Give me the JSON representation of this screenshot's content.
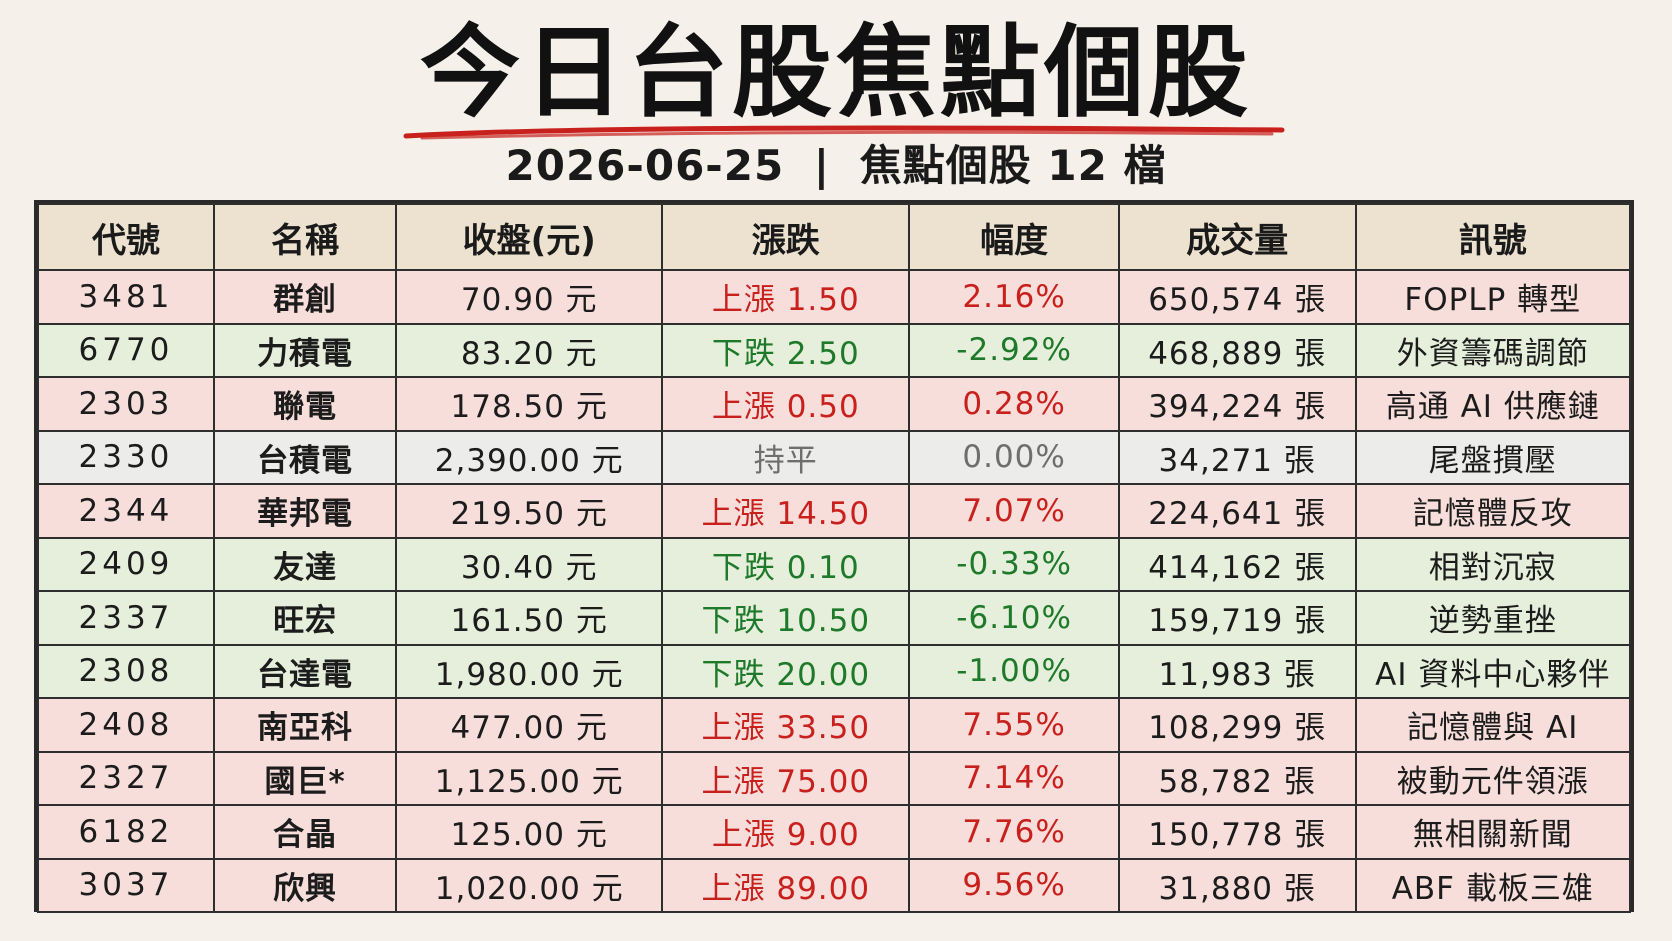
{
  "header": {
    "title": "今日台股焦點個股",
    "date": "2026-06-25",
    "separator": "|",
    "subtitle": "焦點個股 12 檔"
  },
  "colors": {
    "up_text": "#c8201d",
    "down_text": "#1e7a2a",
    "flat_text": "#6e6e6e",
    "up_row": "#f7dedb",
    "down_row": "#e6efdb",
    "flat_row": "#ececea",
    "header_row": "#ece2cf",
    "underline": "#c8201d"
  },
  "table": {
    "columns": [
      "代號",
      "名稱",
      "收盤(元)",
      "漲跌",
      "幅度",
      "成交量",
      "訊號"
    ],
    "rows": [
      {
        "trend": "up",
        "code": "3481",
        "name": "群創",
        "close": "70.90 元",
        "change": "上漲 1.50",
        "pct": "2.16%",
        "volume": "650,574 張",
        "signal": "FOPLP 轉型"
      },
      {
        "trend": "down",
        "code": "6770",
        "name": "力積電",
        "close": "83.20 元",
        "change": "下跌 2.50",
        "pct": "-2.92%",
        "volume": "468,889 張",
        "signal": "外資籌碼調節"
      },
      {
        "trend": "up",
        "code": "2303",
        "name": "聯電",
        "close": "178.50 元",
        "change": "上漲 0.50",
        "pct": "0.28%",
        "volume": "394,224 張",
        "signal": "高通 AI 供應鏈"
      },
      {
        "trend": "flat",
        "code": "2330",
        "name": "台積電",
        "close": "2,390.00 元",
        "change": "持平",
        "pct": "0.00%",
        "volume": "34,271 張",
        "signal": "尾盤摜壓"
      },
      {
        "trend": "up",
        "code": "2344",
        "name": "華邦電",
        "close": "219.50 元",
        "change": "上漲 14.50",
        "pct": "7.07%",
        "volume": "224,641 張",
        "signal": "記憶體反攻"
      },
      {
        "trend": "down",
        "code": "2409",
        "name": "友達",
        "close": "30.40 元",
        "change": "下跌 0.10",
        "pct": "-0.33%",
        "volume": "414,162 張",
        "signal": "相對沉寂"
      },
      {
        "trend": "down",
        "code": "2337",
        "name": "旺宏",
        "close": "161.50 元",
        "change": "下跌 10.50",
        "pct": "-6.10%",
        "volume": "159,719 張",
        "signal": "逆勢重挫"
      },
      {
        "trend": "down",
        "code": "2308",
        "name": "台達電",
        "close": "1,980.00 元",
        "change": "下跌 20.00",
        "pct": "-1.00%",
        "volume": "11,983 張",
        "signal": "AI 資料中心夥伴"
      },
      {
        "trend": "up",
        "code": "2408",
        "name": "南亞科",
        "close": "477.00 元",
        "change": "上漲 33.50",
        "pct": "7.55%",
        "volume": "108,299 張",
        "signal": "記憶體與 AI"
      },
      {
        "trend": "up",
        "code": "2327",
        "name": "國巨*",
        "close": "1,125.00 元",
        "change": "上漲 75.00",
        "pct": "7.14%",
        "volume": "58,782 張",
        "signal": "被動元件領漲"
      },
      {
        "trend": "up",
        "code": "6182",
        "name": "合晶",
        "close": "125.00 元",
        "change": "上漲 9.00",
        "pct": "7.76%",
        "volume": "150,778 張",
        "signal": "無相關新聞"
      },
      {
        "trend": "up",
        "code": "3037",
        "name": "欣興",
        "close": "1,020.00 元",
        "change": "上漲 89.00",
        "pct": "9.56%",
        "volume": "31,880 張",
        "signal": "ABF 載板三雄"
      }
    ]
  }
}
